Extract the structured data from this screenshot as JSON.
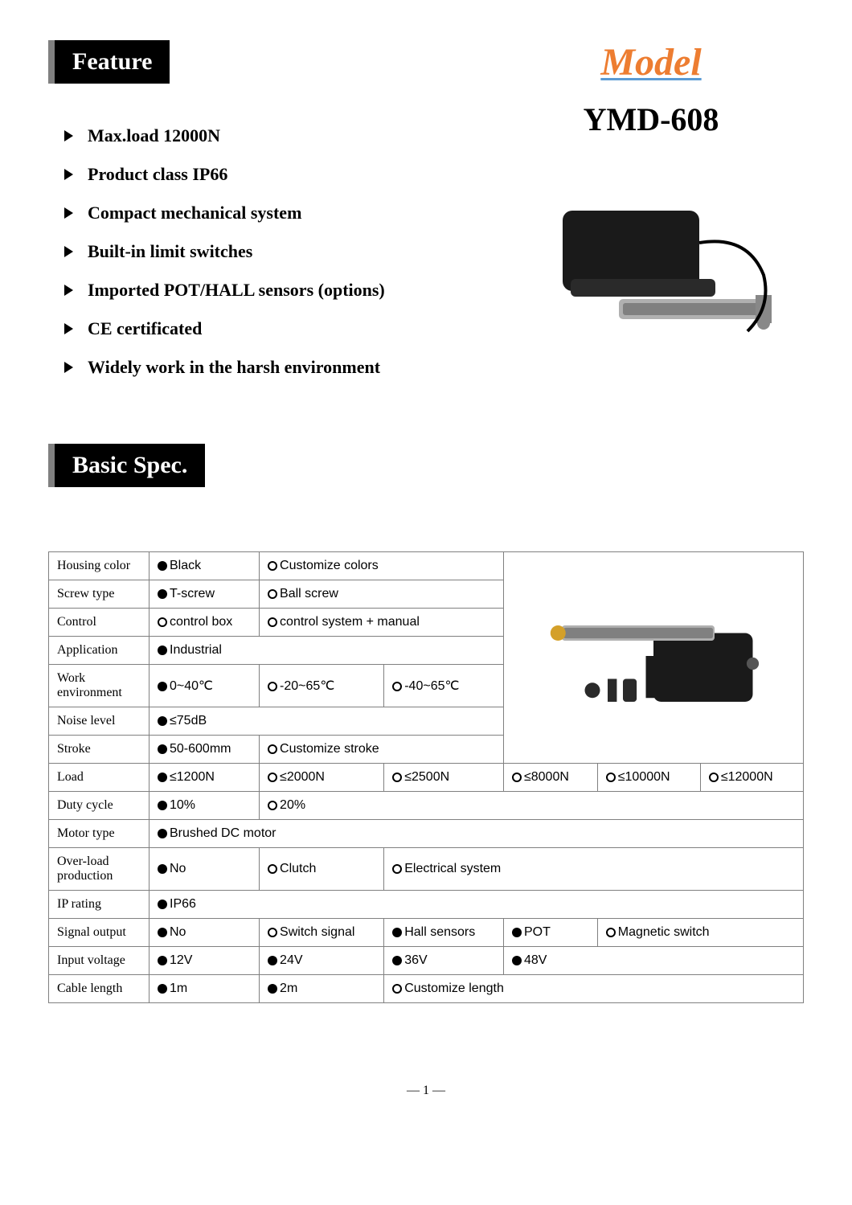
{
  "feature": {
    "title": "Feature",
    "items": [
      "Max.load 12000N",
      "Product class IP66",
      "Compact mechanical system",
      "Built-in limit switches",
      "Imported POT/HALL sensors (options)",
      "CE certificated",
      "Widely work in the harsh environment"
    ]
  },
  "model": {
    "label": "Model",
    "name": "YMD-608",
    "label_color": "#ed7d31",
    "underline_color": "#5b9bd5"
  },
  "spec": {
    "title": "Basic Spec.",
    "rows": [
      {
        "label": "Housing color",
        "opts": [
          {
            "t": "Black",
            "f": true
          },
          {
            "t": "Customize colors",
            "f": false
          }
        ],
        "cols": 2
      },
      {
        "label": "Screw type",
        "opts": [
          {
            "t": "T-screw",
            "f": true
          },
          {
            "t": "Ball screw",
            "f": false
          }
        ],
        "cols": 2
      },
      {
        "label": "Control",
        "opts": [
          {
            "t": "control box",
            "f": false
          },
          {
            "t": "control system + manual",
            "f": false
          }
        ],
        "cols": 2
      },
      {
        "label": "Application",
        "opts": [
          {
            "t": "Industrial",
            "f": true
          }
        ],
        "cols": 1
      },
      {
        "label": "Work environment",
        "opts": [
          {
            "t": "0~40℃",
            "f": true
          },
          {
            "t": "-20~65℃",
            "f": false
          },
          {
            "t": "-40~65℃",
            "f": false
          }
        ],
        "cols": 3
      },
      {
        "label": "Noise level",
        "opts": [
          {
            "t": "≤75dB",
            "f": true
          }
        ],
        "cols": 1
      },
      {
        "label": "Stroke",
        "opts": [
          {
            "t": "50-600mm",
            "f": true
          },
          {
            "t": "Customize stroke",
            "f": false
          }
        ],
        "cols": 2
      },
      {
        "label": "Load",
        "opts": [
          {
            "t": "≤1200N",
            "f": true
          },
          {
            "t": "≤2000N",
            "f": false
          },
          {
            "t": "≤2500N",
            "f": false
          },
          {
            "t": "≤8000N",
            "f": false
          },
          {
            "t": "≤10000N",
            "f": false
          },
          {
            "t": "≤12000N",
            "f": false
          }
        ],
        "cols": 6,
        "full": true
      },
      {
        "label": "Duty cycle",
        "opts": [
          {
            "t": "10%",
            "f": true
          },
          {
            "t": "20%",
            "f": false
          }
        ],
        "cols": 2,
        "full": true
      },
      {
        "label": "Motor type",
        "opts": [
          {
            "t": "Brushed DC motor",
            "f": true
          }
        ],
        "cols": 1,
        "full": true
      },
      {
        "label": "Over-load production",
        "opts": [
          {
            "t": "No",
            "f": true
          },
          {
            "t": "Clutch",
            "f": false
          },
          {
            "t": "Electrical system",
            "f": false
          }
        ],
        "cols": 3,
        "full": true
      },
      {
        "label": "IP rating",
        "opts": [
          {
            "t": "IP66",
            "f": true
          }
        ],
        "cols": 1,
        "full": true
      },
      {
        "label": "Signal output",
        "opts": [
          {
            "t": "No",
            "f": true
          },
          {
            "t": "Switch signal",
            "f": false
          },
          {
            "t": "Hall sensors",
            "f": true
          },
          {
            "t": "POT",
            "f": true
          },
          {
            "t": "Magnetic switch",
            "f": false
          }
        ],
        "cols": 5,
        "full": true
      },
      {
        "label": "Input voltage",
        "opts": [
          {
            "t": "12V",
            "f": true
          },
          {
            "t": "24V",
            "f": true
          },
          {
            "t": "36V",
            "f": true
          },
          {
            "t": "48V",
            "f": true
          }
        ],
        "cols": 4,
        "full": true
      },
      {
        "label": "Cable length",
        "opts": [
          {
            "t": "1m",
            "f": true
          },
          {
            "t": "2m",
            "f": true
          },
          {
            "t": "Customize length",
            "f": false
          }
        ],
        "cols": 3,
        "full": true
      }
    ],
    "image_rowspan": 7,
    "upper_cols": 3,
    "total_opt_cols": 6
  },
  "page": "— 1 —",
  "colors": {
    "border": "#808080",
    "black": "#000000",
    "white": "#ffffff"
  }
}
